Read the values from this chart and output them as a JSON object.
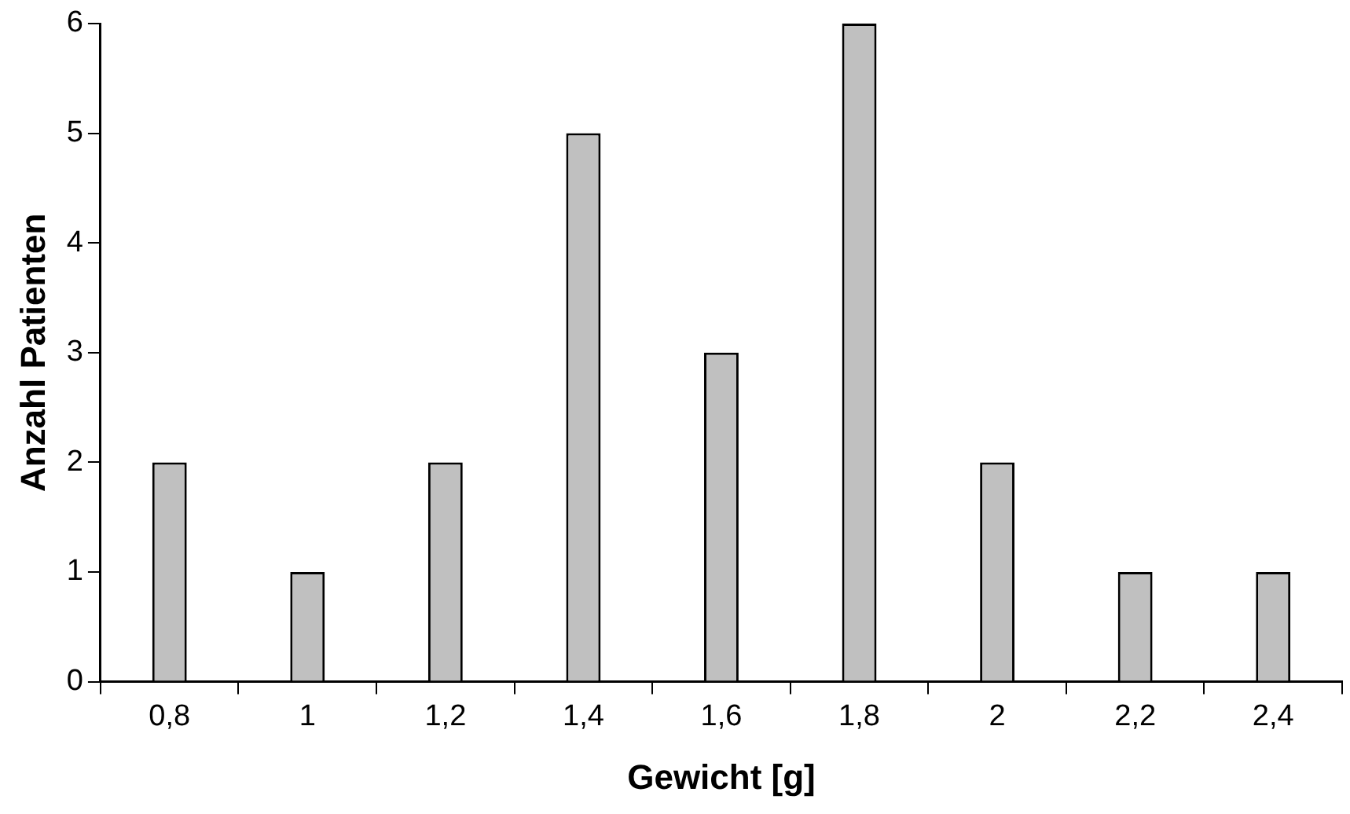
{
  "chart_data": {
    "type": "bar",
    "xlabel": "Gewicht [g]",
    "ylabel": "Anzahl Patienten",
    "categories": [
      "0,8",
      "1",
      "1,2",
      "1,4",
      "1,6",
      "1,8",
      "2",
      "2,2",
      "2,4"
    ],
    "values": [
      2,
      1,
      2,
      5,
      3,
      6,
      2,
      1,
      1
    ],
    "color": "#c0c0c0",
    "ylim": [
      0,
      6
    ],
    "yticks": [
      0,
      1,
      2,
      3,
      4,
      5,
      6
    ]
  }
}
